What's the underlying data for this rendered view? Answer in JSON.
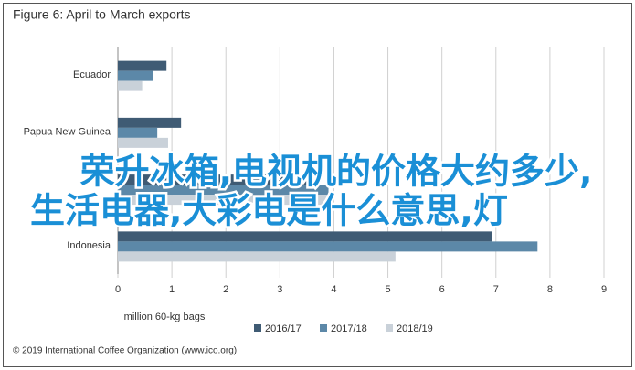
{
  "chart_data": {
    "type": "barh",
    "title": "Figure 6: April to March exports",
    "x_label": "million 60-kg bags",
    "source": "© 2019 International Coffee Organization (www.ico.org)",
    "categories": [
      "Ecuador",
      "Papua New Guinea",
      null,
      "Indonesia"
    ],
    "series": [
      {
        "name": "2016/17",
        "color": "#3f5b74",
        "values": [
          0.9,
          1.17,
          3.6,
          6.92
        ]
      },
      {
        "name": "2017/18",
        "color": "#5c88a8",
        "values": [
          0.65,
          0.73,
          3.9,
          7.77
        ]
      },
      {
        "name": "2018/19",
        "color": "#c9d1d9",
        "values": [
          0.45,
          0.93,
          4.0,
          5.14
        ]
      }
    ],
    "xlim": [
      0,
      9
    ],
    "xticks": [
      0,
      1,
      2,
      3,
      4,
      5,
      6,
      7,
      8,
      9
    ],
    "grid": true
  },
  "overlay_text": [
    "荣升冰箱,电视机的价格大约多少,",
    "生活电器,大彩电是什么意思,灯"
  ]
}
